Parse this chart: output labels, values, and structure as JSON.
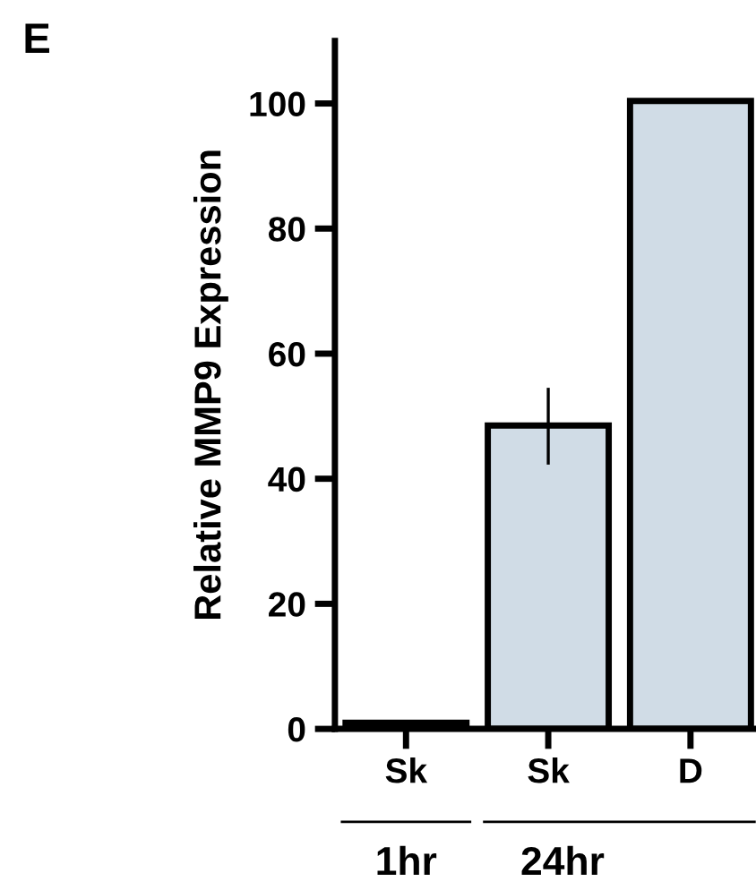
{
  "chart_data": {
    "type": "bar",
    "ylabel": "Relative MMP9 Expression",
    "categories": [
      "Sk",
      "Sk",
      "D"
    ],
    "values": [
      1,
      48.5,
      100.4
    ],
    "errors": [
      null,
      [
        42.5,
        54.3
      ],
      null
    ],
    "color": "#d0dce6",
    "ylim": [
      0,
      110
    ],
    "yticks": [
      0,
      20,
      40,
      60,
      80,
      100
    ],
    "grid": false,
    "legend": false,
    "annotations": [
      "E",
      "1hr",
      "24hr"
    ]
  }
}
